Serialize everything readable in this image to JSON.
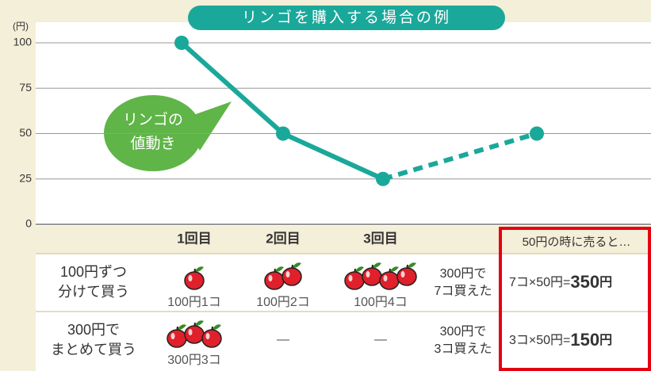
{
  "chart_data": {
    "type": "line",
    "title": "リンゴを購入する場合の例",
    "y_unit": "(円)",
    "categories": [
      "1回目",
      "2回目",
      "3回目",
      null
    ],
    "series": [
      {
        "values": [
          100,
          50,
          25,
          50
        ],
        "color": "#1aa89a"
      }
    ],
    "dashed_from": 2,
    "ylim": [
      0,
      100
    ],
    "yticks": [
      0,
      25,
      50,
      75,
      100
    ],
    "grid": true,
    "annotation": [
      "リンゴの",
      "値動き"
    ]
  },
  "table": {
    "header_note": "50円の時に売ると…",
    "rows": [
      {
        "label": [
          "100円ずつ",
          "分けて買う"
        ],
        "cells": [
          {
            "apples": 1,
            "text": "100円1コ"
          },
          {
            "apples": 2,
            "text": "100円2コ"
          },
          {
            "apples": 4,
            "text": "100円4コ"
          }
        ],
        "bought": [
          "300円で",
          "7コ買えた"
        ],
        "result": {
          "formula": "7コ×50円=",
          "amount": "350",
          "unit": "円"
        }
      },
      {
        "label": [
          "300円で",
          "まとめて買う"
        ],
        "cells": [
          {
            "apples": 3,
            "text": "300円3コ"
          },
          {
            "text": "―"
          },
          {
            "text": "―"
          }
        ],
        "bought": [
          "300円で",
          "3コ買えた"
        ],
        "result": {
          "formula": "3コ×50円=",
          "amount": "150",
          "unit": "円"
        }
      }
    ]
  }
}
